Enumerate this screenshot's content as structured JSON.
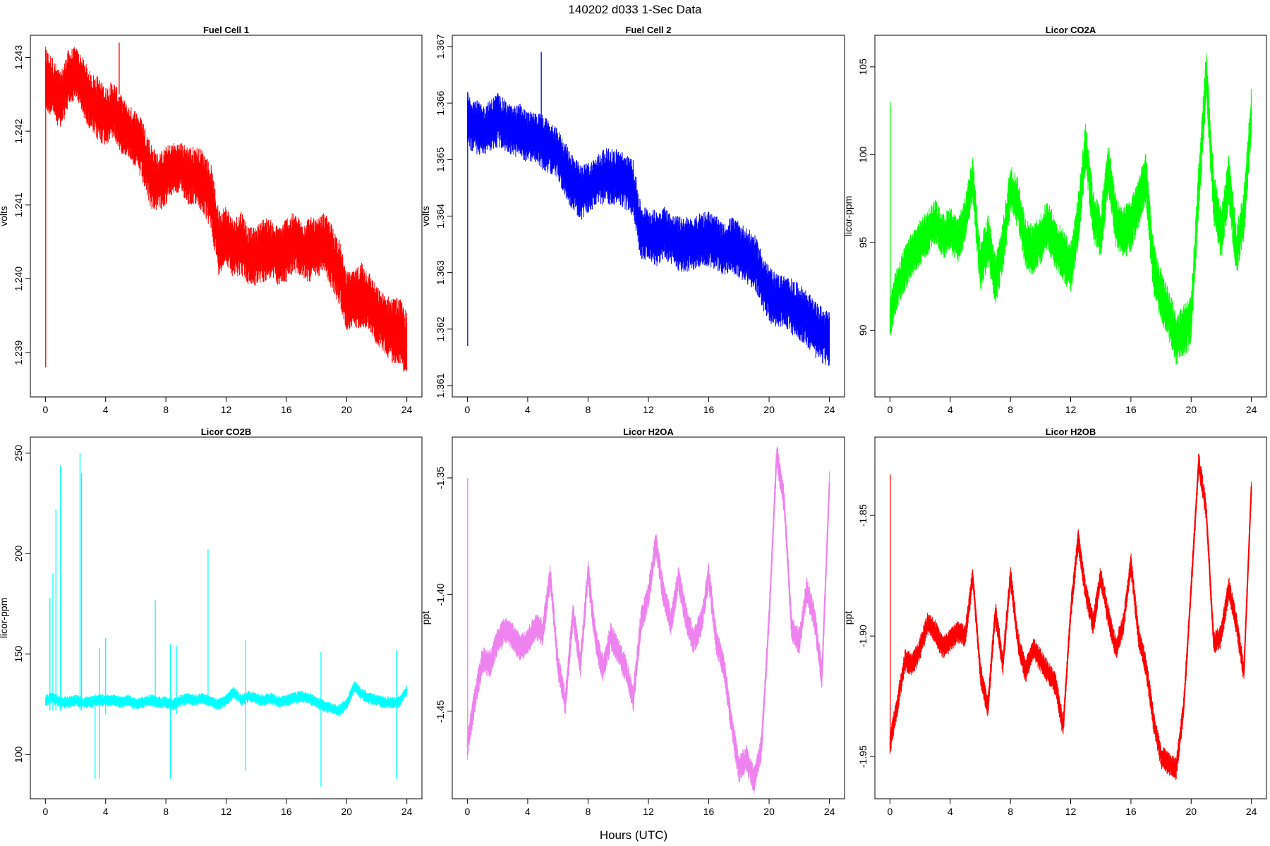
{
  "figure": {
    "title": "140202   d033   1-Sec Data",
    "xlabel": "Hours (UTC)"
  },
  "chart_data": [
    {
      "type": "line",
      "title": "Fuel Cell 1",
      "xlabel": "",
      "ylabel": "volts",
      "color": "#ff0000",
      "xlim": [
        -1,
        25
      ],
      "ylim": [
        1.2384,
        1.2433
      ],
      "xticks": [
        0,
        4,
        8,
        12,
        16,
        20,
        24
      ],
      "yticks": [
        1.239,
        1.24,
        1.241,
        1.242,
        1.243
      ],
      "ytick_labels": [
        "1.239",
        "1.240",
        "1.241",
        "1.242",
        "1.243"
      ],
      "x": [
        0,
        0.5,
        1,
        1.5,
        2,
        2.5,
        3,
        3.5,
        4,
        4.5,
        5,
        5.5,
        6,
        6.5,
        7,
        7.5,
        8,
        8.5,
        9,
        9.5,
        10,
        10.5,
        11,
        11.5,
        12,
        12.5,
        13,
        13.5,
        14,
        14.5,
        15,
        15.5,
        16,
        16.5,
        17,
        17.5,
        18,
        18.5,
        19,
        19.5,
        20,
        20.5,
        21,
        21.5,
        22,
        22.5,
        23,
        23.5,
        24
      ],
      "y": [
        1.2427,
        1.2426,
        1.2424,
        1.2427,
        1.2428,
        1.2426,
        1.2424,
        1.2423,
        1.2422,
        1.2423,
        1.2421,
        1.242,
        1.2419,
        1.2417,
        1.2414,
        1.2413,
        1.2414,
        1.2415,
        1.2415,
        1.2414,
        1.2414,
        1.2413,
        1.2411,
        1.2405,
        1.2406,
        1.2404,
        1.2405,
        1.2403,
        1.2403,
        1.2404,
        1.2404,
        1.2403,
        1.2404,
        1.2405,
        1.2404,
        1.2404,
        1.2404,
        1.2405,
        1.2403,
        1.2401,
        1.2397,
        1.2397,
        1.2398,
        1.2397,
        1.2395,
        1.2394,
        1.2393,
        1.2393,
        1.2391
      ],
      "band": [
        0.00045,
        0.0004,
        0.0004,
        0.0004,
        0.00035,
        0.0004,
        0.0004,
        0.00045,
        0.0004,
        0.0004,
        0.0004,
        0.00035,
        0.0004,
        0.00045,
        0.00045,
        0.0004,
        0.0004,
        0.00035,
        0.00035,
        0.0004,
        0.0004,
        0.00045,
        0.00045,
        0.00045,
        0.0004,
        0.0004,
        0.00045,
        0.0004,
        0.0004,
        0.00045,
        0.0004,
        0.0004,
        0.00045,
        0.0004,
        0.0004,
        0.00045,
        0.0004,
        0.0004,
        0.00045,
        0.00045,
        0.0004,
        0.0004,
        0.00045,
        0.0004,
        0.0004,
        0.0004,
        0.00045,
        0.00045,
        0.00045
      ],
      "spikes": [
        [
          0.02,
          1.2388,
          1.2431
        ],
        [
          4.9,
          1.2425,
          1.2432
        ]
      ]
    },
    {
      "type": "line",
      "title": "Fuel Cell 2",
      "xlabel": "",
      "ylabel": "volts",
      "color": "#0000ff",
      "xlim": [
        -1,
        25
      ],
      "ylim": [
        1.3608,
        1.3672
      ],
      "xticks": [
        0,
        4,
        8,
        12,
        16,
        20,
        24
      ],
      "yticks": [
        1.361,
        1.362,
        1.363,
        1.364,
        1.365,
        1.366,
        1.367
      ],
      "ytick_labels": [
        "1.361",
        "1.362",
        "1.363",
        "1.364",
        "1.365",
        "1.366",
        "1.367"
      ],
      "x": [
        0,
        0.5,
        1,
        1.5,
        2,
        2.5,
        3,
        3.5,
        4,
        4.5,
        5,
        5.5,
        6,
        6.5,
        7,
        7.5,
        8,
        8.5,
        9,
        9.5,
        10,
        10.5,
        11,
        11.5,
        12,
        12.5,
        13,
        13.5,
        14,
        14.5,
        15,
        15.5,
        16,
        16.5,
        17,
        17.5,
        18,
        18.5,
        19,
        19.5,
        20,
        20.5,
        21,
        21.5,
        22,
        22.5,
        23,
        23.5,
        24
      ],
      "y": [
        1.3657,
        1.3656,
        1.3655,
        1.3656,
        1.3657,
        1.3656,
        1.3655,
        1.3655,
        1.3654,
        1.3654,
        1.3653,
        1.3652,
        1.3651,
        1.3648,
        1.3646,
        1.3644,
        1.3645,
        1.3646,
        1.3647,
        1.3647,
        1.3647,
        1.3646,
        1.3645,
        1.3637,
        1.3637,
        1.3636,
        1.3637,
        1.3636,
        1.3635,
        1.3635,
        1.3635,
        1.3636,
        1.3636,
        1.3635,
        1.3634,
        1.3635,
        1.3634,
        1.3633,
        1.3632,
        1.3629,
        1.3626,
        1.3625,
        1.3625,
        1.3624,
        1.3623,
        1.3622,
        1.362,
        1.3619,
        1.3618
      ],
      "band": [
        0.0005,
        0.0005,
        0.00045,
        0.00045,
        0.0005,
        0.00045,
        0.00045,
        0.0005,
        0.00045,
        0.00045,
        0.0005,
        0.00045,
        0.00045,
        0.0005,
        0.0005,
        0.0005,
        0.00045,
        0.00045,
        0.0005,
        0.0005,
        0.0005,
        0.0005,
        0.0005,
        0.0005,
        0.00045,
        0.0005,
        0.0005,
        0.00045,
        0.0005,
        0.0005,
        0.00045,
        0.0005,
        0.0005,
        0.0005,
        0.00045,
        0.0005,
        0.0005,
        0.0005,
        0.0005,
        0.0005,
        0.0005,
        0.0005,
        0.00045,
        0.0005,
        0.0005,
        0.0005,
        0.0005,
        0.0005,
        0.0005
      ],
      "spikes": [
        [
          0.02,
          1.3617,
          1.3662
        ],
        [
          4.9,
          1.3655,
          1.3669
        ]
      ]
    },
    {
      "type": "line",
      "title": "Licor CO2A",
      "xlabel": "",
      "ylabel": "licor-ppm",
      "color": "#00ff00",
      "xlim": [
        -1,
        25
      ],
      "ylim": [
        86.2,
        106.8
      ],
      "xticks": [
        0,
        4,
        8,
        12,
        16,
        20,
        24
      ],
      "yticks": [
        90,
        95,
        100,
        105
      ],
      "ytick_labels": [
        "90",
        "95",
        "100",
        "105"
      ],
      "x": [
        0,
        0.5,
        1,
        1.5,
        2,
        2.5,
        3,
        3.5,
        4,
        4.5,
        5,
        5.5,
        6,
        6.5,
        7,
        7.5,
        8,
        8.5,
        9,
        9.5,
        10,
        10.5,
        11,
        11.5,
        12,
        12.5,
        13,
        13.5,
        14,
        14.5,
        15,
        15.5,
        16,
        16.5,
        17,
        17.5,
        18,
        18.5,
        19,
        19.5,
        20,
        20.5,
        21,
        21.5,
        22,
        22.5,
        23,
        23.5,
        24
      ],
      "y": [
        90.8,
        92.5,
        93.5,
        94.4,
        95.0,
        95.6,
        96.2,
        95.3,
        95.8,
        95.0,
        96.3,
        98.6,
        93.5,
        95.2,
        92.8,
        94.8,
        98.0,
        97.2,
        95.0,
        94.5,
        95.2,
        96.0,
        94.8,
        94.3,
        93.5,
        96.3,
        100.6,
        96.5,
        95.5,
        99.3,
        96.2,
        95.5,
        96.0,
        97.3,
        98.6,
        93.5,
        92.0,
        91.0,
        89.5,
        90.0,
        90.5,
        98.0,
        104.5,
        97.5,
        95.5,
        98.5,
        94.5,
        96.5,
        102.5
      ],
      "band": [
        1.3,
        1.3,
        1.3,
        1.3,
        1.3,
        1.3,
        1.3,
        1.3,
        1.3,
        1.3,
        1.3,
        1.3,
        1.5,
        1.5,
        1.5,
        1.5,
        1.5,
        1.5,
        1.5,
        1.5,
        1.5,
        1.5,
        1.5,
        1.5,
        1.5,
        1.5,
        1.5,
        1.5,
        1.5,
        1.5,
        1.5,
        1.5,
        1.5,
        1.5,
        1.5,
        1.5,
        1.5,
        1.5,
        1.5,
        1.5,
        1.5,
        1.5,
        1.5,
        1.5,
        1.5,
        1.5,
        1.5,
        1.5,
        1.5
      ],
      "spikes": [
        [
          0.02,
          91.0,
          103.0
        ]
      ]
    },
    {
      "type": "line",
      "title": "Licor CO2B",
      "xlabel": "",
      "ylabel": "licor-ppm",
      "color": "#00ffff",
      "xlim": [
        -1,
        25
      ],
      "ylim": [
        78,
        258
      ],
      "xticks": [
        0,
        4,
        8,
        12,
        16,
        20,
        24
      ],
      "yticks": [
        100,
        150,
        200,
        250
      ],
      "ytick_labels": [
        "100",
        "150",
        "200",
        "250"
      ],
      "x": [
        0,
        0.5,
        1,
        1.5,
        2,
        2.5,
        3,
        3.5,
        4,
        4.5,
        5,
        5.5,
        6,
        6.5,
        7,
        7.5,
        8,
        8.5,
        9,
        9.5,
        10,
        10.5,
        11,
        11.5,
        12,
        12.5,
        13,
        13.5,
        14,
        14.5,
        15,
        15.5,
        16,
        16.5,
        17,
        17.5,
        18,
        18.5,
        19,
        19.5,
        20,
        20.5,
        21,
        21.5,
        22,
        22.5,
        23,
        23.5,
        24
      ],
      "y": [
        127,
        128,
        126,
        126,
        127,
        126,
        126,
        127,
        127,
        127,
        126,
        127,
        125,
        126,
        127,
        126,
        126,
        125,
        127,
        128,
        127,
        128,
        126,
        125,
        127,
        131,
        127,
        129,
        128,
        127,
        128,
        126,
        127,
        128,
        129,
        128,
        126,
        124,
        123,
        122,
        125,
        134,
        130,
        128,
        127,
        126,
        126,
        126,
        132
      ],
      "band": [
        3,
        3,
        3,
        3,
        3,
        3,
        3,
        3,
        3,
        3,
        3,
        3,
        3,
        3,
        3,
        3,
        3,
        3,
        3,
        3,
        3,
        3,
        3,
        3,
        3,
        3,
        3,
        3,
        3,
        3,
        3,
        3,
        3,
        3,
        3,
        3,
        3,
        3,
        3,
        3,
        3,
        3,
        3,
        3,
        3,
        3,
        3,
        3,
        3
      ],
      "spikes": [
        [
          0.3,
          122,
          178
        ],
        [
          0.5,
          122,
          190
        ],
        [
          0.7,
          122,
          222
        ],
        [
          1.0,
          122,
          244
        ],
        [
          2.3,
          122,
          250
        ],
        [
          2.4,
          122,
          240
        ],
        [
          3.3,
          88,
          130
        ],
        [
          3.6,
          88,
          153
        ],
        [
          4.0,
          120,
          158
        ],
        [
          7.3,
          124,
          177
        ],
        [
          8.3,
          88,
          155
        ],
        [
          8.7,
          120,
          154
        ],
        [
          10.8,
          124,
          202
        ],
        [
          13.3,
          92,
          157
        ],
        [
          18.3,
          84,
          151
        ],
        [
          23.3,
          88,
          152
        ]
      ]
    },
    {
      "type": "line",
      "title": "Licor H2OA",
      "xlabel": "",
      "ylabel": "ppt",
      "color": "#ee82ee",
      "xlim": [
        -1,
        25
      ],
      "ylim": [
        -1.4875,
        -1.3325
      ],
      "xticks": [
        0,
        4,
        8,
        12,
        16,
        20,
        24
      ],
      "yticks": [
        -1.45,
        -1.4,
        -1.35
      ],
      "ytick_labels": [
        "-1.45",
        "-1.40",
        "-1.35"
      ],
      "x": [
        0,
        0.5,
        1,
        1.5,
        2,
        2.5,
        3,
        3.5,
        4,
        4.5,
        5,
        5.5,
        6,
        6.5,
        7,
        7.5,
        8,
        8.5,
        9,
        9.5,
        10,
        10.5,
        11,
        11.5,
        12,
        12.5,
        13,
        13.5,
        14,
        14.5,
        15,
        15.5,
        16,
        16.5,
        17,
        17.5,
        18,
        18.5,
        19,
        19.5,
        20,
        20.5,
        21,
        21.5,
        22,
        22.5,
        23,
        23.5,
        24
      ],
      "y": [
        -1.465,
        -1.445,
        -1.428,
        -1.43,
        -1.42,
        -1.415,
        -1.418,
        -1.423,
        -1.42,
        -1.414,
        -1.416,
        -1.392,
        -1.43,
        -1.446,
        -1.408,
        -1.43,
        -1.39,
        -1.42,
        -1.432,
        -1.418,
        -1.424,
        -1.432,
        -1.445,
        -1.412,
        -1.4,
        -1.378,
        -1.4,
        -1.412,
        -1.393,
        -1.41,
        -1.42,
        -1.412,
        -1.392,
        -1.42,
        -1.43,
        -1.455,
        -1.475,
        -1.47,
        -1.48,
        -1.465,
        -1.41,
        -1.34,
        -1.36,
        -1.415,
        -1.42,
        -1.398,
        -1.41,
        -1.435,
        -1.352
      ],
      "band": [
        0.006,
        0.006,
        0.006,
        0.006,
        0.006,
        0.006,
        0.006,
        0.006,
        0.006,
        0.006,
        0.006,
        0.006,
        0.006,
        0.006,
        0.006,
        0.006,
        0.006,
        0.006,
        0.006,
        0.006,
        0.006,
        0.006,
        0.006,
        0.006,
        0.006,
        0.006,
        0.006,
        0.006,
        0.006,
        0.006,
        0.006,
        0.006,
        0.006,
        0.006,
        0.006,
        0.006,
        0.006,
        0.006,
        0.006,
        0.006,
        0.006,
        0.006,
        0.006,
        0.006,
        0.006,
        0.006,
        0.006,
        0.006,
        0.006
      ],
      "spikes": [
        [
          0.02,
          -1.465,
          -1.35
        ]
      ]
    },
    {
      "type": "line",
      "title": "Licor H2OB",
      "xlabel": "",
      "ylabel": "ppt",
      "color": "#ff0000",
      "xlim": [
        -1,
        25
      ],
      "ylim": [
        -1.9675,
        -1.8175
      ],
      "xticks": [
        0,
        4,
        8,
        12,
        16,
        20,
        24
      ],
      "yticks": [
        -1.95,
        -1.9,
        -1.85
      ],
      "ytick_labels": [
        "-1.95",
        "-1.90",
        "-1.85"
      ],
      "x": [
        0,
        0.5,
        1,
        1.5,
        2,
        2.5,
        3,
        3.5,
        4,
        4.5,
        5,
        5.5,
        6,
        6.5,
        7,
        7.5,
        8,
        8.5,
        9,
        9.5,
        10,
        10.5,
        11,
        11.5,
        12,
        12.5,
        13,
        13.5,
        14,
        14.5,
        15,
        15.5,
        16,
        16.5,
        17,
        17.5,
        18,
        18.5,
        19,
        19.5,
        20,
        20.5,
        21,
        21.5,
        22,
        22.5,
        23,
        23.5,
        24
      ],
      "y": [
        -1.945,
        -1.928,
        -1.91,
        -1.912,
        -1.905,
        -1.895,
        -1.898,
        -1.905,
        -1.902,
        -1.898,
        -1.9,
        -1.875,
        -1.915,
        -1.93,
        -1.89,
        -1.912,
        -1.875,
        -1.902,
        -1.915,
        -1.905,
        -1.91,
        -1.915,
        -1.92,
        -1.938,
        -1.89,
        -1.86,
        -1.882,
        -1.895,
        -1.875,
        -1.892,
        -1.905,
        -1.895,
        -1.87,
        -1.9,
        -1.912,
        -1.935,
        -1.95,
        -1.953,
        -1.955,
        -1.93,
        -1.88,
        -1.828,
        -1.848,
        -1.903,
        -1.9,
        -1.88,
        -1.895,
        -1.915,
        -1.838
      ],
      "band": [
        0.005,
        0.005,
        0.005,
        0.005,
        0.005,
        0.005,
        0.005,
        0.005,
        0.005,
        0.005,
        0.005,
        0.005,
        0.005,
        0.005,
        0.005,
        0.005,
        0.005,
        0.005,
        0.005,
        0.005,
        0.005,
        0.005,
        0.005,
        0.005,
        0.005,
        0.005,
        0.005,
        0.005,
        0.005,
        0.005,
        0.005,
        0.005,
        0.005,
        0.005,
        0.005,
        0.005,
        0.005,
        0.005,
        0.005,
        0.005,
        0.005,
        0.005,
        0.005,
        0.005,
        0.005,
        0.005,
        0.005,
        0.005,
        0.005
      ],
      "spikes": [
        [
          0.02,
          -1.945,
          -1.833
        ]
      ]
    }
  ]
}
